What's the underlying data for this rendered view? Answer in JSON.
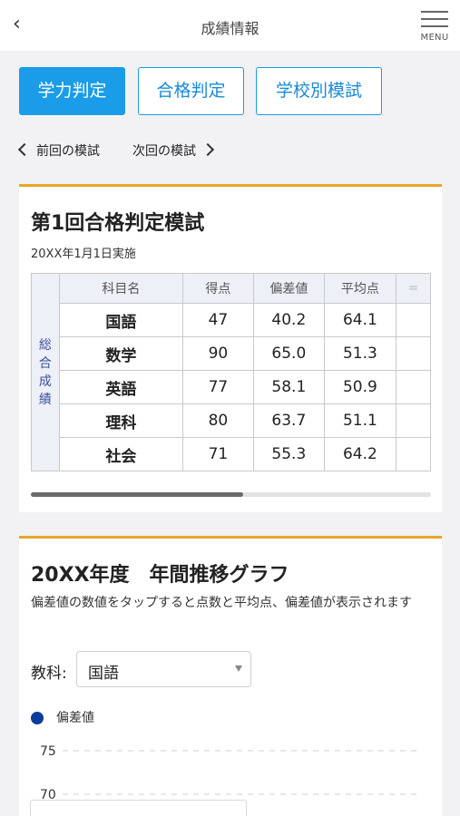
{
  "header": {
    "title": "成績情報",
    "back_icon": "chevron-left-icon",
    "menu_label": "MENU"
  },
  "tabs": [
    {
      "label": "学力判定",
      "active": true
    },
    {
      "label": "合格判定",
      "active": false
    },
    {
      "label": "学校別模試",
      "active": false
    }
  ],
  "mock_nav": {
    "prev_label": "前回の模試",
    "next_label": "次回の模試"
  },
  "result_card": {
    "title": "第1回合格判定模試",
    "date": "20XX年1月1日実施",
    "row_group_label": "総合成績",
    "columns": [
      "科目名",
      "得点",
      "偏差値",
      "平均点",
      "="
    ],
    "rows": [
      {
        "subject": "国語",
        "score": "47",
        "deviation": "40.2",
        "average": "64.1"
      },
      {
        "subject": "数学",
        "score": "90",
        "deviation": "65.0",
        "average": "51.3"
      },
      {
        "subject": "英語",
        "score": "77",
        "deviation": "58.1",
        "average": "50.9"
      },
      {
        "subject": "理科",
        "score": "80",
        "deviation": "63.7",
        "average": "51.1"
      },
      {
        "subject": "社会",
        "score": "71",
        "deviation": "55.3",
        "average": "64.2"
      }
    ],
    "scroll_fraction": 0.53
  },
  "trend_card": {
    "title": "20XX年度　年間推移グラフ",
    "description": "偏差値の数値をタップすると点数と平均点、偏差値が表示されます",
    "subject_label": "教科:",
    "subject_value": "国語"
  },
  "colors": {
    "accent": "#1a9ce8",
    "card_border": "#e8a62a",
    "series": "#0a3d99"
  },
  "chart_data": {
    "type": "line",
    "series": [
      {
        "name": "偏差値",
        "values": []
      }
    ],
    "y_ticks": [
      "75",
      "70"
    ],
    "ylim": [
      70,
      75
    ],
    "grid": true
  }
}
